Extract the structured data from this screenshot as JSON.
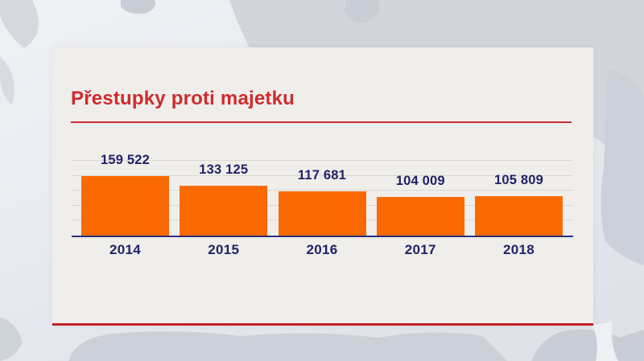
{
  "title": "Přestupky proti majetku",
  "colors": {
    "title_red": "#ce2b2e",
    "underline_red": "#cd2b30",
    "bottom_line_red": "#be2328",
    "bar_orange": "#fb6a00",
    "text_navy": "#222268",
    "axis_navy": "#2d3080",
    "gridline_gray": "#d9d8d4",
    "card_bg": "#efeeea",
    "map_land_gray": "#d2d5dc"
  },
  "chart_data": {
    "type": "bar",
    "title": "Přestupky proti majetku",
    "categories": [
      "2014",
      "2015",
      "2016",
      "2017",
      "2018"
    ],
    "values": [
      159522,
      133125,
      117681,
      104009,
      105809
    ],
    "value_labels": [
      "159 522",
      "133 125",
      "117 681",
      "104 009",
      "105 809"
    ],
    "xlabel": "",
    "ylabel": "",
    "ylim": [
      0,
      200000
    ],
    "gridline_step": 40000,
    "grid": true,
    "legend": false,
    "background": "tv-news world map"
  }
}
